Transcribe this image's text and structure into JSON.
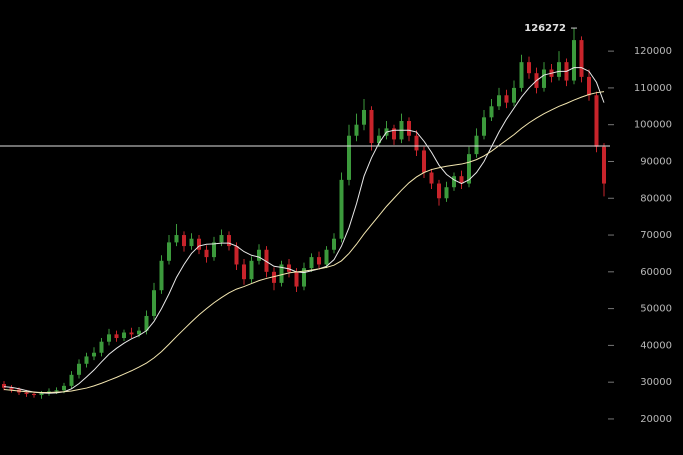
{
  "chart_data": {
    "type": "candlestick",
    "open": [
      29500,
      28500,
      28000,
      27200,
      26800,
      26500,
      27000,
      27500,
      27800,
      29000,
      32000,
      35000,
      37000,
      38000,
      41000,
      43000,
      42000,
      43500,
      43000,
      44000,
      48000,
      55000,
      63000,
      68000,
      70000,
      67000,
      69000,
      66000,
      64000,
      68000,
      70000,
      67000,
      62000,
      58000,
      63000,
      66000,
      60000,
      57000,
      62000,
      60000,
      56000,
      61000,
      64000,
      62000,
      66000,
      69000,
      85000,
      97000,
      100000,
      104000,
      95000,
      97000,
      99000,
      96000,
      101000,
      97000,
      93000,
      87000,
      84000,
      80000,
      83000,
      86000,
      84000,
      92000,
      97000,
      102000,
      105000,
      108000,
      106000,
      110000,
      117000,
      114000,
      110000,
      115000,
      113000,
      117000,
      112000,
      123000,
      113000,
      108000,
      94000
    ],
    "high": [
      30300,
      29200,
      28600,
      27900,
      27500,
      27600,
      28300,
      28600,
      29800,
      33000,
      36200,
      38000,
      39500,
      42000,
      44500,
      44000,
      44300,
      44800,
      45000,
      49500,
      57000,
      64500,
      70000,
      73000,
      71000,
      70500,
      70000,
      67200,
      69500,
      71500,
      71000,
      68000,
      63500,
      64200,
      67500,
      67000,
      61200,
      63000,
      63500,
      61000,
      62500,
      65000,
      65500,
      67000,
      70500,
      87000,
      100000,
      103000,
      107000,
      105000,
      99000,
      101000,
      100000,
      103000,
      102000,
      98500,
      94000,
      88000,
      85000,
      84500,
      87000,
      87500,
      94000,
      99000,
      104000,
      107000,
      110000,
      109500,
      112000,
      119000,
      118500,
      115500,
      117000,
      116500,
      120000,
      118000,
      126272,
      124000,
      115000,
      109000,
      95000
    ],
    "low": [
      27800,
      27200,
      26500,
      26000,
      25800,
      25500,
      26300,
      26800,
      27000,
      28300,
      31000,
      34000,
      36000,
      37000,
      40000,
      41000,
      41200,
      42000,
      42200,
      43000,
      47000,
      54000,
      62000,
      67000,
      65500,
      66000,
      64800,
      62500,
      63000,
      67000,
      65800,
      60500,
      56500,
      57000,
      62000,
      58500,
      55000,
      56000,
      58500,
      54500,
      55000,
      60000,
      60800,
      61000,
      65000,
      68000,
      83500,
      95500,
      98500,
      93000,
      94000,
      96000,
      94500,
      95000,
      95500,
      91500,
      85500,
      82500,
      78000,
      79000,
      82000,
      82500,
      83000,
      91000,
      96000,
      101000,
      104000,
      104500,
      105000,
      109000,
      112500,
      108500,
      109000,
      111500,
      112000,
      110500,
      111000,
      111500,
      106500,
      92500,
      80500
    ],
    "close": [
      28500,
      28000,
      27200,
      26800,
      26500,
      27000,
      27500,
      27800,
      29000,
      32000,
      35000,
      37000,
      38000,
      41000,
      43000,
      42000,
      43500,
      43000,
      44000,
      48000,
      55000,
      63000,
      68000,
      70000,
      67000,
      69000,
      66000,
      64000,
      68000,
      70000,
      67000,
      62000,
      58000,
      63000,
      66000,
      60000,
      57000,
      62000,
      60000,
      56000,
      61000,
      64000,
      62000,
      66000,
      69000,
      85000,
      97000,
      100000,
      104000,
      95000,
      97000,
      99000,
      96000,
      101000,
      97000,
      93000,
      87000,
      84000,
      80000,
      83000,
      86000,
      84000,
      92000,
      97000,
      102000,
      105000,
      108000,
      106000,
      110000,
      117000,
      114000,
      110000,
      115000,
      113000,
      117000,
      112000,
      123000,
      113000,
      108000,
      94000,
      84000
    ],
    "overlays": [
      {
        "color": "#e8e8e8",
        "values": [
          28800,
          28600,
          28200,
          27700,
          27300,
          27100,
          27000,
          27100,
          27400,
          28200,
          29600,
          31400,
          33300,
          35500,
          37600,
          39200,
          40600,
          41800,
          42700,
          44000,
          46500,
          50000,
          54000,
          58500,
          62000,
          65000,
          67000,
          67500,
          67600,
          67800,
          67800,
          67000,
          65500,
          64500,
          64000,
          62800,
          61500,
          61200,
          60800,
          60000,
          59800,
          60300,
          60800,
          61500,
          63300,
          67000,
          72000,
          78500,
          86000,
          91000,
          95000,
          98000,
          98500,
          98500,
          98500,
          98000,
          95500,
          92500,
          89000,
          86500,
          85000,
          84000,
          85000,
          87000,
          90000,
          94000,
          98000,
          101500,
          104500,
          107500,
          110000,
          112000,
          113500,
          114000,
          114500,
          114500,
          115500,
          115500,
          114500,
          111500,
          106000
        ]
      },
      {
        "color": "#f3e6b0",
        "values": [
          28000,
          27800,
          27600,
          27400,
          27300,
          27200,
          27200,
          27300,
          27400,
          27600,
          28000,
          28400,
          29000,
          29700,
          30500,
          31300,
          32200,
          33100,
          34100,
          35200,
          36600,
          38300,
          40300,
          42400,
          44400,
          46400,
          48300,
          50000,
          51600,
          53000,
          54300,
          55300,
          56000,
          56800,
          57600,
          58200,
          58700,
          59200,
          59700,
          60000,
          60200,
          60500,
          60800,
          61200,
          61800,
          63000,
          65000,
          67500,
          70300,
          72800,
          75300,
          77800,
          80000,
          82200,
          84200,
          85800,
          87000,
          87800,
          88300,
          88700,
          89000,
          89300,
          89800,
          90500,
          91500,
          92800,
          94300,
          95800,
          97300,
          99000,
          100500,
          101800,
          103000,
          104000,
          105000,
          105800,
          106700,
          107500,
          108200,
          108700,
          109000
        ]
      }
    ],
    "up_color": "#3c9a3c",
    "down_color": "#c8242b",
    "ylim": [
      10200,
      133900
    ],
    "yticks": [
      20000,
      30000,
      40000,
      50000,
      60000,
      70000,
      80000,
      90000,
      100000,
      110000,
      120000
    ],
    "price_line": 94200,
    "peak_label": 126272
  }
}
